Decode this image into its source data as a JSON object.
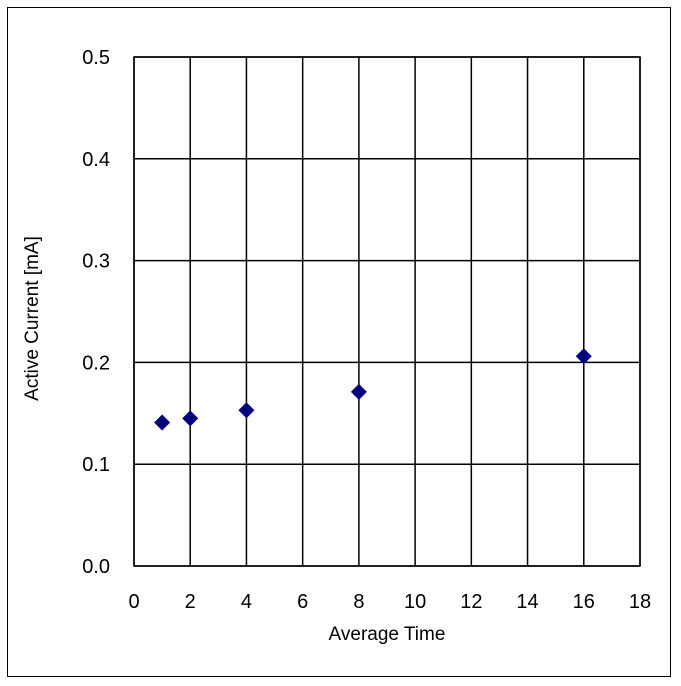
{
  "chart_data": {
    "type": "scatter",
    "title": "",
    "xlabel": "Average Time",
    "ylabel": "Active Current [mA]",
    "xlim": [
      0,
      18
    ],
    "ylim": [
      0.0,
      0.5
    ],
    "xticks": [
      0,
      2,
      4,
      6,
      8,
      10,
      12,
      14,
      16,
      18
    ],
    "yticks": [
      0.0,
      0.1,
      0.2,
      0.3,
      0.4,
      0.5
    ],
    "xtick_labels": [
      "0",
      "2",
      "4",
      "6",
      "8",
      "10",
      "12",
      "14",
      "16",
      "18"
    ],
    "ytick_labels": [
      "0.0",
      "0.1",
      "0.2",
      "0.3",
      "0.4",
      "0.5"
    ],
    "grid": true,
    "legend": "none",
    "marker": "diamond",
    "series": [
      {
        "x": [
          1,
          2,
          4,
          8,
          16
        ],
        "y": [
          0.141,
          0.145,
          0.153,
          0.171,
          0.206
        ]
      }
    ],
    "colors": {
      "marker": "#00007f",
      "grid": "#000000"
    }
  }
}
